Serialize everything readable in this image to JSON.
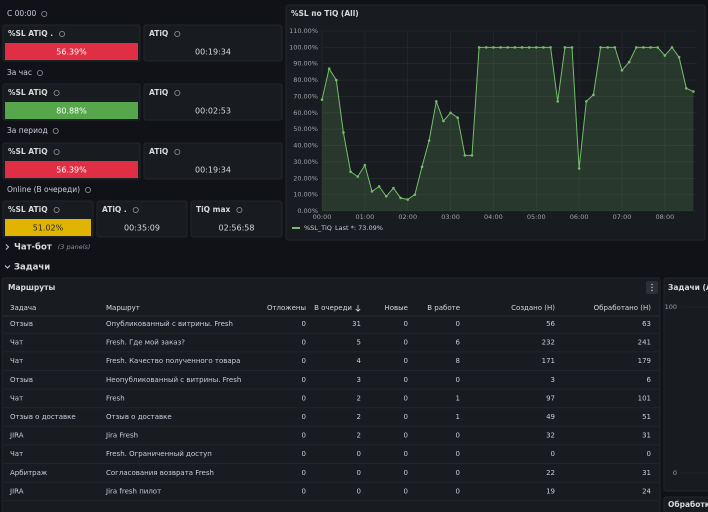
{
  "stats": {
    "sections": [
      {
        "title": "C 00:00",
        "panels": [
          {
            "title": "%SL ATiQ .",
            "value": "56.39%",
            "color": "#e02f44"
          },
          {
            "title": "ATiQ",
            "value": "00:19:34"
          }
        ]
      },
      {
        "title": "За час",
        "panels": [
          {
            "title": "%SL ATiQ",
            "value": "80.88%",
            "color": "#56a64b"
          },
          {
            "title": "ATiQ",
            "value": "00:02:53"
          }
        ]
      },
      {
        "title": "За период",
        "panels": [
          {
            "title": "%SL ATiQ",
            "value": "56.39%",
            "color": "#e02f44"
          },
          {
            "title": "ATiQ",
            "value": "00:19:34"
          }
        ]
      },
      {
        "title": "Online (В очереди)",
        "panels": [
          {
            "title": "%SL ATiQ",
            "value": "51.02%",
            "color": "#e0b400"
          },
          {
            "title": "ATiQ .",
            "value": "00:35:09"
          },
          {
            "title": "TiQ max",
            "value": "02:56:58"
          }
        ]
      }
    ]
  },
  "chart_data": {
    "type": "line",
    "title": "%SL по TiQ (All)",
    "x": [
      0,
      10,
      20,
      30,
      40,
      50,
      60,
      70,
      80,
      90,
      100,
      110,
      120,
      130,
      140,
      150,
      160,
      170,
      180,
      190,
      200,
      210,
      220,
      230,
      240,
      250,
      260,
      270,
      280,
      290,
      300,
      310,
      320,
      330,
      340,
      350,
      360,
      370,
      380,
      390,
      400,
      410,
      420,
      430,
      440,
      450,
      460,
      470,
      480,
      490,
      500,
      510,
      520
    ],
    "series": [
      {
        "name": "%SL_TiQ",
        "color": "#73bf69",
        "values": [
          68,
          87,
          80,
          48,
          24,
          21,
          28,
          12,
          15,
          9,
          14,
          8,
          7,
          10,
          27,
          43,
          67,
          55,
          60,
          57,
          34,
          34,
          100,
          100,
          100,
          100,
          100,
          100,
          100,
          100,
          100,
          100,
          100,
          67,
          100,
          100,
          26,
          67,
          71,
          100,
          100,
          100,
          86,
          91,
          100,
          100,
          100,
          100,
          95,
          100,
          94,
          75,
          73
        ]
      }
    ],
    "legend_text": "Last *: 73.09%",
    "xlim": [
      0,
      525
    ],
    "xticks": [
      {
        "value": 0,
        "label": "00:00"
      },
      {
        "value": 60,
        "label": "01:00"
      },
      {
        "value": 120,
        "label": "02:00"
      },
      {
        "value": 180,
        "label": "03:00"
      },
      {
        "value": 240,
        "label": "04:00"
      },
      {
        "value": 300,
        "label": "05:00"
      },
      {
        "value": 360,
        "label": "06:00"
      },
      {
        "value": 420,
        "label": "07:00"
      },
      {
        "value": 480,
        "label": "08:00"
      }
    ],
    "ylim": [
      0,
      110
    ],
    "yticks": [
      {
        "value": 0,
        "label": "0.00%"
      },
      {
        "value": 10,
        "label": "10.00%"
      },
      {
        "value": 20,
        "label": "20.00%"
      },
      {
        "value": 30,
        "label": "30.00%"
      },
      {
        "value": 40,
        "label": "40.00%"
      },
      {
        "value": 50,
        "label": "50.00%"
      },
      {
        "value": 60,
        "label": "60.00%"
      },
      {
        "value": 70,
        "label": "70.00%"
      },
      {
        "value": 80,
        "label": "80.00%"
      },
      {
        "value": 90,
        "label": "90.00%"
      },
      {
        "value": 100,
        "label": "100.00%"
      },
      {
        "value": 110,
        "label": "110.00%"
      }
    ],
    "grid": true
  },
  "rows": [
    {
      "title": "Чат-бот",
      "note": "(3 panels)"
    },
    {
      "title": "Задачи"
    }
  ],
  "table": {
    "title": "Маршруты",
    "headers": [
      "Задача",
      "Маршрут",
      "Отложены",
      "В очереди",
      "Новые",
      "В работе",
      "Создано (Н)",
      "Обработано (Н)"
    ],
    "rows": [
      [
        "Отзыв",
        "Опубликованный с витрины. Fresh",
        0,
        31,
        0,
        0,
        56,
        63
      ],
      [
        "Чат",
        "Fresh. Где мой заказ?",
        0,
        5,
        0,
        6,
        232,
        241
      ],
      [
        "Чат",
        "Fresh. Качество полученного товара",
        0,
        4,
        0,
        8,
        171,
        179
      ],
      [
        "Отзыв",
        "Неопубликованный с витрины. Fresh",
        0,
        3,
        0,
        0,
        3,
        6
      ],
      [
        "Чат",
        "Fresh",
        0,
        2,
        0,
        1,
        97,
        101
      ],
      [
        "Отзыв о доставке",
        "Отзыв о доставке",
        0,
        2,
        0,
        1,
        49,
        51
      ],
      [
        "JIRA",
        "Jira Fresh",
        0,
        2,
        0,
        0,
        32,
        31
      ],
      [
        "Чат",
        "Fresh. Ограниченный доступ",
        0,
        0,
        0,
        0,
        0,
        0
      ],
      [
        "Арбитраж",
        "Согласования возврата Fresh",
        0,
        0,
        0,
        0,
        22,
        31
      ],
      [
        "JIRA",
        "Jira fresh пилот",
        0,
        0,
        0,
        0,
        19,
        24
      ]
    ]
  },
  "side_panels": [
    {
      "title": "Задачи (All",
      "ylim": [
        0,
        100
      ],
      "yticks": [
        100,
        0
      ]
    },
    {
      "title": "Обработка"
    }
  ]
}
